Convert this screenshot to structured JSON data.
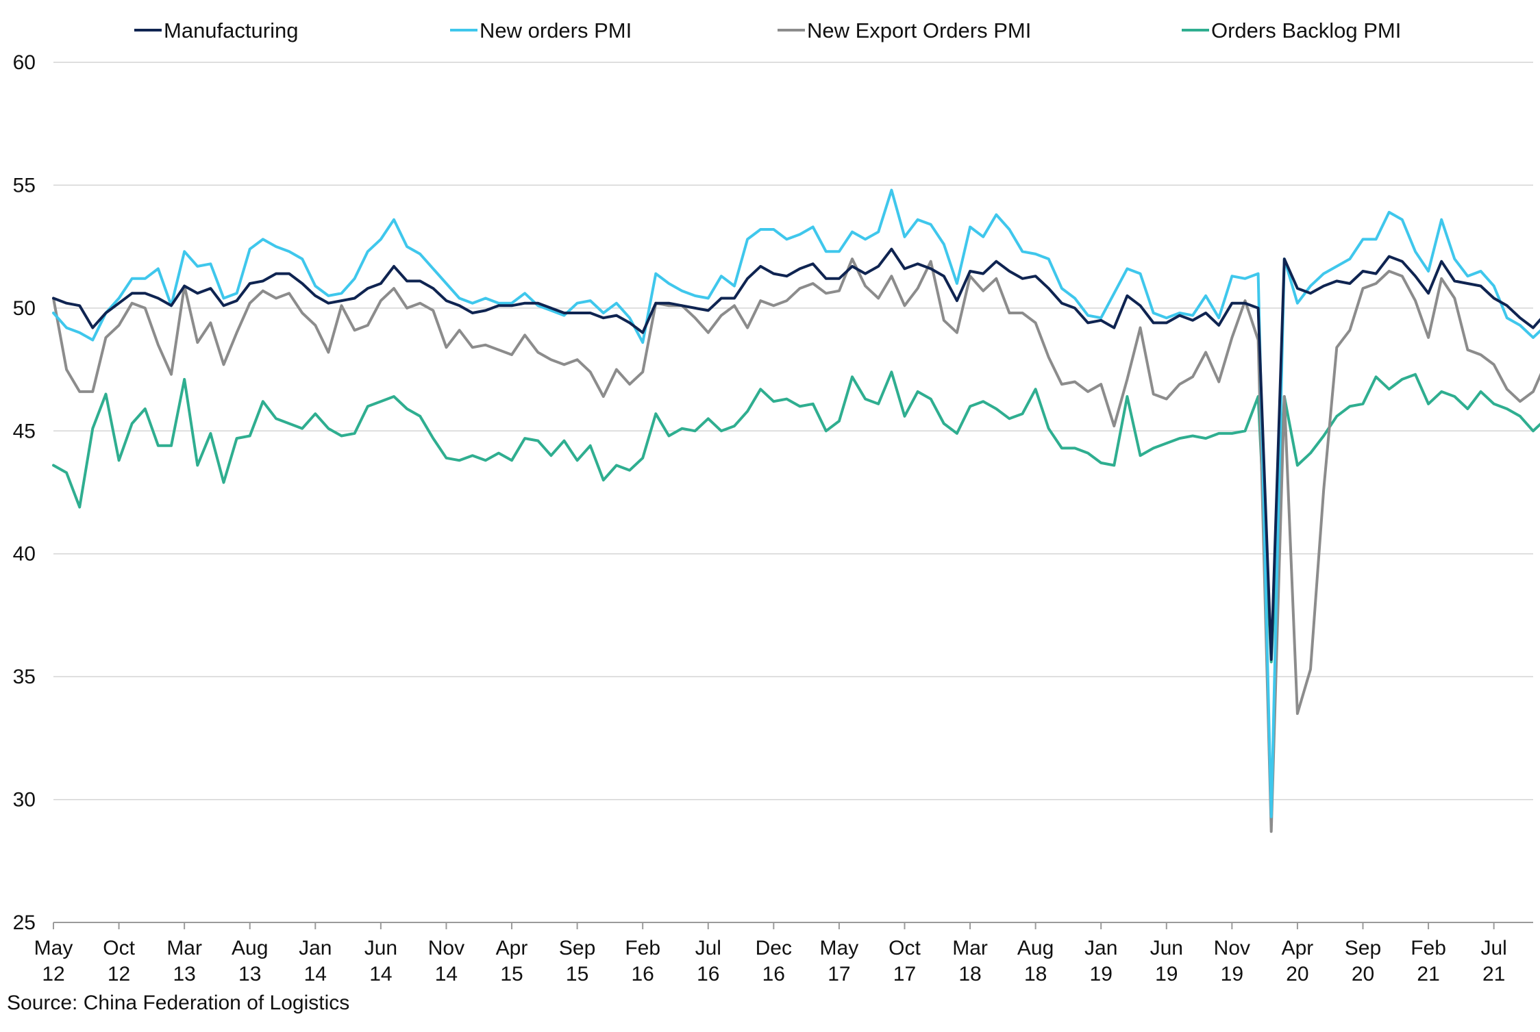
{
  "source_text": "Source:  China Federation  of Logistics",
  "chart_data": {
    "type": "line",
    "title": "",
    "xlabel": "",
    "ylabel": "",
    "ylim": [
      25,
      60
    ],
    "yticks": [
      25,
      30,
      35,
      40,
      45,
      50,
      55,
      60
    ],
    "grid": true,
    "legend_position": "top",
    "x_start": "2012-05",
    "x_end": "2021-10",
    "x_ticks": [
      {
        "month": "May",
        "year": "12"
      },
      {
        "month": "Oct",
        "year": "12"
      },
      {
        "month": "Mar",
        "year": "13"
      },
      {
        "month": "Aug",
        "year": "13"
      },
      {
        "month": "Jan",
        "year": "14"
      },
      {
        "month": "Jun",
        "year": "14"
      },
      {
        "month": "Nov",
        "year": "14"
      },
      {
        "month": "Apr",
        "year": "15"
      },
      {
        "month": "Sep",
        "year": "15"
      },
      {
        "month": "Feb",
        "year": "16"
      },
      {
        "month": "Jul",
        "year": "16"
      },
      {
        "month": "Dec",
        "year": "16"
      },
      {
        "month": "May",
        "year": "17"
      },
      {
        "month": "Oct",
        "year": "17"
      },
      {
        "month": "Mar",
        "year": "18"
      },
      {
        "month": "Aug",
        "year": "18"
      },
      {
        "month": "Jan",
        "year": "19"
      },
      {
        "month": "Jun",
        "year": "19"
      },
      {
        "month": "Nov",
        "year": "19"
      },
      {
        "month": "Apr",
        "year": "20"
      },
      {
        "month": "Sep",
        "year": "20"
      },
      {
        "month": "Feb",
        "year": "21"
      },
      {
        "month": "Jul",
        "year": "21"
      }
    ],
    "series": [
      {
        "name": "Manufacturing",
        "color": "#0f2451",
        "values": [
          50.4,
          50.2,
          50.1,
          49.2,
          49.8,
          50.2,
          50.6,
          50.6,
          50.4,
          50.1,
          50.9,
          50.6,
          50.8,
          50.1,
          50.3,
          51.0,
          51.1,
          51.4,
          51.4,
          51.0,
          50.5,
          50.2,
          50.3,
          50.4,
          50.8,
          51.0,
          51.7,
          51.1,
          51.1,
          50.8,
          50.3,
          50.1,
          49.8,
          49.9,
          50.1,
          50.1,
          50.2,
          50.2,
          50.0,
          49.8,
          49.8,
          49.8,
          49.6,
          49.7,
          49.4,
          49.0,
          50.2,
          50.2,
          50.1,
          50.0,
          49.9,
          50.4,
          50.4,
          51.2,
          51.7,
          51.4,
          51.3,
          51.6,
          51.8,
          51.2,
          51.2,
          51.7,
          51.4,
          51.7,
          52.4,
          51.6,
          51.8,
          51.6,
          51.3,
          50.3,
          51.5,
          51.4,
          51.9,
          51.5,
          51.2,
          51.3,
          50.8,
          50.2,
          50.0,
          49.4,
          49.5,
          49.2,
          50.5,
          50.1,
          49.4,
          49.4,
          49.7,
          49.5,
          49.8,
          49.3,
          50.2,
          50.2,
          50.0,
          35.7,
          52.0,
          50.8,
          50.6,
          50.9,
          51.1,
          51.0,
          51.5,
          51.4,
          52.1,
          51.9,
          51.3,
          50.6,
          51.9,
          51.1,
          51.0,
          50.9,
          50.4,
          50.1,
          49.6,
          49.2,
          49.8
        ]
      },
      {
        "name": "New orders PMI",
        "color": "#3fc7ec",
        "values": [
          49.8,
          49.2,
          49.0,
          48.7,
          49.8,
          50.4,
          51.2,
          51.2,
          51.6,
          50.1,
          52.3,
          51.7,
          51.8,
          50.4,
          50.6,
          52.4,
          52.8,
          52.5,
          52.3,
          52.0,
          50.9,
          50.5,
          50.6,
          51.2,
          52.3,
          52.8,
          53.6,
          52.5,
          52.2,
          51.6,
          51.0,
          50.4,
          50.2,
          50.4,
          50.2,
          50.2,
          50.6,
          50.1,
          49.9,
          49.7,
          50.2,
          50.3,
          49.8,
          50.2,
          49.6,
          48.6,
          51.4,
          51.0,
          50.7,
          50.5,
          50.4,
          51.3,
          50.9,
          52.8,
          53.2,
          53.2,
          52.8,
          53.0,
          53.3,
          52.3,
          52.3,
          53.1,
          52.8,
          53.1,
          54.8,
          52.9,
          53.6,
          53.4,
          52.6,
          51.0,
          53.3,
          52.9,
          53.8,
          53.2,
          52.3,
          52.2,
          52.0,
          50.8,
          50.4,
          49.7,
          49.6,
          50.6,
          51.6,
          51.4,
          49.8,
          49.6,
          49.8,
          49.7,
          50.5,
          49.6,
          51.3,
          51.2,
          51.4,
          29.3,
          52.0,
          50.2,
          50.9,
          51.4,
          51.7,
          52.0,
          52.8,
          52.8,
          53.9,
          53.6,
          52.3,
          51.5,
          53.6,
          52.0,
          51.3,
          51.5,
          50.9,
          49.6,
          49.3,
          48.8,
          49.3
        ]
      },
      {
        "name": "New Export Orders PMI",
        "color": "#8c8c8c",
        "values": [
          50.4,
          47.5,
          46.6,
          46.6,
          48.8,
          49.3,
          50.2,
          50.0,
          48.5,
          47.3,
          50.9,
          48.6,
          49.4,
          47.7,
          49.0,
          50.2,
          50.7,
          50.4,
          50.6,
          49.8,
          49.3,
          48.2,
          50.1,
          49.1,
          49.3,
          50.3,
          50.8,
          50.0,
          50.2,
          49.9,
          48.4,
          49.1,
          48.4,
          48.5,
          48.3,
          48.1,
          48.9,
          48.2,
          47.9,
          47.7,
          47.9,
          47.4,
          46.4,
          47.5,
          46.9,
          47.4,
          50.2,
          50.1,
          50.1,
          49.6,
          49.0,
          49.7,
          50.1,
          49.2,
          50.3,
          50.1,
          50.3,
          50.8,
          51.0,
          50.6,
          50.7,
          52.0,
          50.9,
          50.4,
          51.3,
          50.1,
          50.8,
          51.9,
          49.5,
          49.0,
          51.3,
          50.7,
          51.2,
          49.8,
          49.8,
          49.4,
          48.0,
          46.9,
          47.0,
          46.6,
          46.9,
          45.2,
          47.1,
          49.2,
          46.5,
          46.3,
          46.9,
          47.2,
          48.2,
          47.0,
          48.8,
          50.3,
          48.7,
          28.7,
          46.4,
          33.5,
          35.3,
          42.6,
          48.4,
          49.1,
          50.8,
          51.0,
          51.5,
          51.3,
          50.3,
          48.8,
          51.2,
          50.4,
          48.3,
          48.1,
          47.7,
          46.7,
          46.2,
          46.6,
          47.8
        ]
      },
      {
        "name": "Orders Backlog PMI",
        "color": "#2fae90",
        "values": [
          43.6,
          43.3,
          41.9,
          45.1,
          46.5,
          43.8,
          45.3,
          45.9,
          44.4,
          44.4,
          47.1,
          43.6,
          44.9,
          42.9,
          44.7,
          44.8,
          46.2,
          45.5,
          45.3,
          45.1,
          45.7,
          45.1,
          44.8,
          44.9,
          46.0,
          46.2,
          46.4,
          45.9,
          45.6,
          44.7,
          43.9,
          43.8,
          44.0,
          43.8,
          44.1,
          43.8,
          44.7,
          44.6,
          44.0,
          44.6,
          43.8,
          44.4,
          43.0,
          43.6,
          43.4,
          43.9,
          45.7,
          44.8,
          45.1,
          45.0,
          45.5,
          45.0,
          45.2,
          45.8,
          46.7,
          46.2,
          46.3,
          46.0,
          46.1,
          45.0,
          45.4,
          47.2,
          46.3,
          46.1,
          47.4,
          45.6,
          46.6,
          46.3,
          45.3,
          44.9,
          46.0,
          46.2,
          45.9,
          45.5,
          45.7,
          46.7,
          45.1,
          44.3,
          44.3,
          44.1,
          43.7,
          43.6,
          46.4,
          44.0,
          44.3,
          44.5,
          44.7,
          44.8,
          44.7,
          44.9,
          44.9,
          45.0,
          46.4,
          35.6,
          46.4,
          43.6,
          44.1,
          44.8,
          45.6,
          46.0,
          46.1,
          47.2,
          46.7,
          47.1,
          47.3,
          46.1,
          46.6,
          46.4,
          45.9,
          46.6,
          46.1,
          45.9,
          45.6,
          45.0,
          45.5
        ]
      }
    ]
  }
}
